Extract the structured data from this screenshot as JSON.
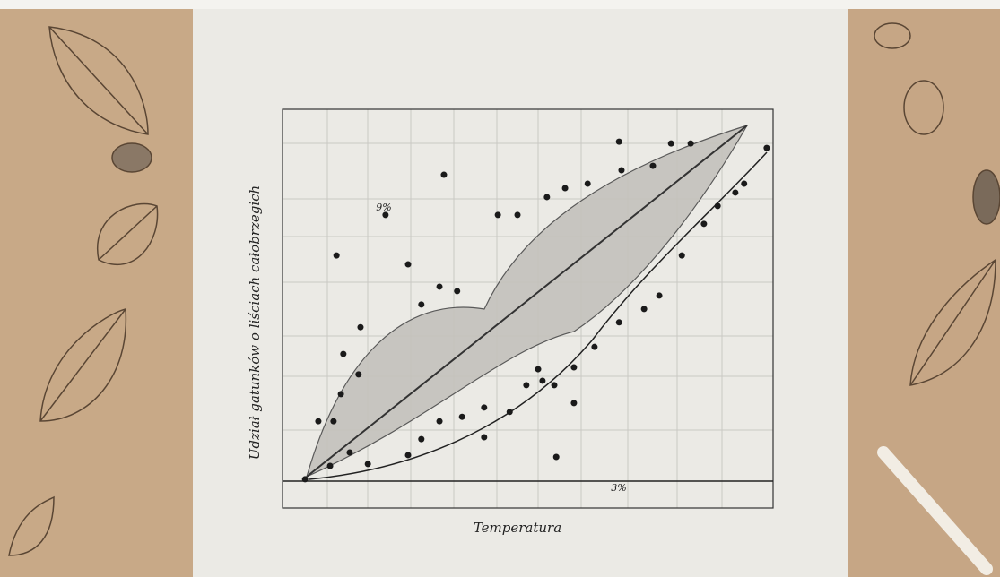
{
  "chart_data": {
    "type": "scatter",
    "y_label": "Udział gatunków o liściach całobrzegich",
    "x_label": "Temperatura",
    "annotations": [
      "9%",
      "3%"
    ],
    "color": "#1a1a1a",
    "xlim": [
      0,
      100
    ],
    "ylim": [
      0,
      100
    ],
    "x": [
      4.6,
      9.7,
      13.7,
      17.4,
      10.4,
      7.3,
      11.9,
      15.5,
      12.4,
      15.9,
      25.6,
      28.3,
      32.0,
      36.6,
      41.1,
      46.3,
      49.7,
      53.0,
      52.1,
      55.4,
      59.4,
      63.6,
      68.6,
      73.7,
      76.8,
      81.4,
      85.9,
      88.7,
      92.3,
      94.1,
      98.7,
      83.2,
      79.2,
      75.5,
      68.6,
      69.1,
      62.2,
      57.6,
      53.9,
      47.9,
      43.9,
      32.0,
      28.3,
      25.6,
      35.6,
      21.0,
      32.9,
      11.0,
      41.1,
      55.8,
      59.4
    ],
    "values": [
      0.5,
      4.1,
      7.7,
      4.6,
      16.1,
      16.1,
      23.4,
      28.7,
      34.2,
      41.4,
      7.0,
      11.3,
      16.1,
      17.3,
      11.8,
      18.6,
      25.8,
      27.0,
      30.1,
      25.8,
      30.6,
      36.1,
      42.7,
      46.3,
      49.9,
      60.7,
      69.2,
      74.0,
      77.6,
      80.0,
      89.6,
      90.8,
      90.8,
      84.8,
      91.3,
      83.6,
      80.0,
      78.8,
      76.4,
      71.6,
      71.6,
      52.3,
      47.5,
      58.3,
      51.1,
      71.6,
      82.4,
      60.7,
      19.8,
      6.5,
      21.0
    ]
  }
}
